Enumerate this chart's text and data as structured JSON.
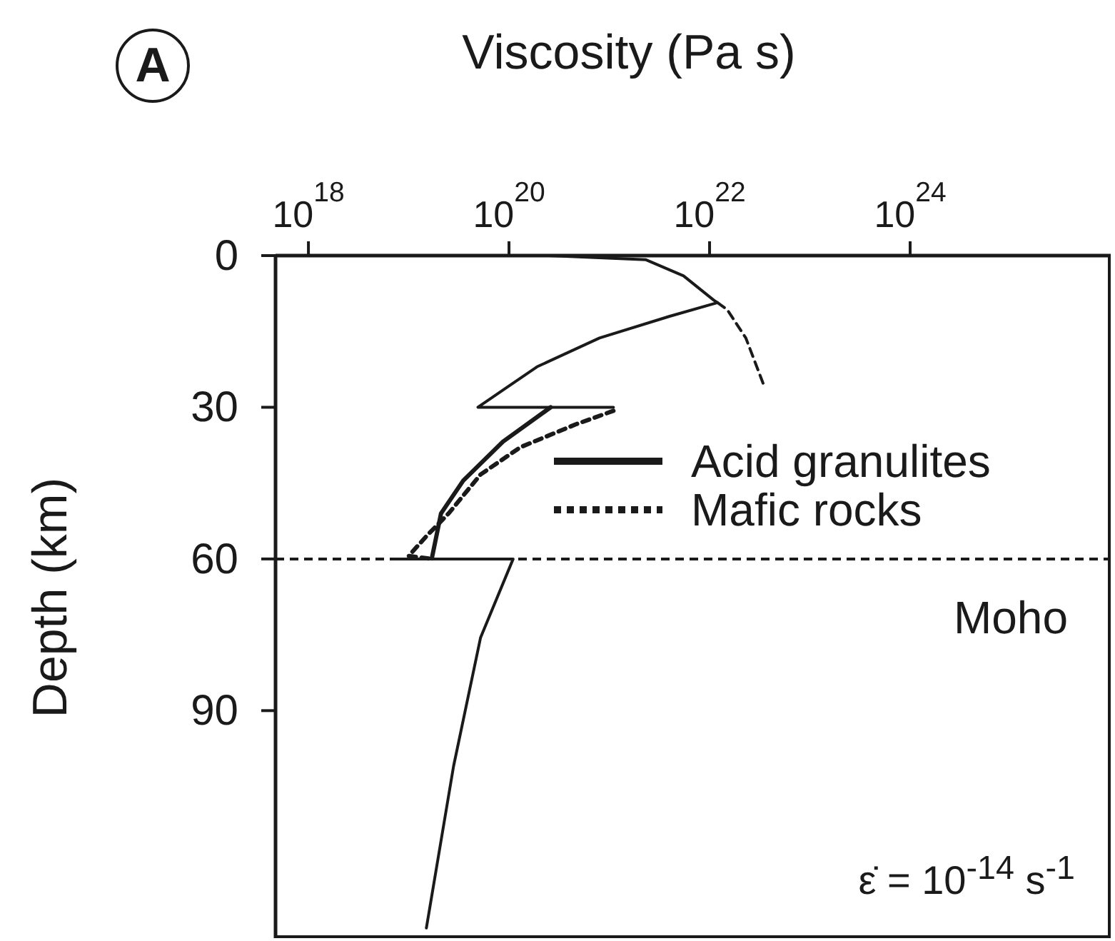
{
  "chart_data": {
    "type": "line",
    "xlabel": "Viscosity (Pa s)",
    "ylabel": "Depth (km)",
    "log": "x",
    "xlim": [
      4.7e+17,
      1e+26
    ],
    "xticks": [
      {
        "value": 1e+18,
        "label": "10$^{18}$"
      },
      {
        "value": 1e+20,
        "label": "10$^{20}$"
      },
      {
        "value": 1e+22,
        "label": "10$^{22}$"
      },
      {
        "value": 1e+24,
        "label": "10$^{24}$"
      }
    ],
    "ylim": [
      135,
      0
    ],
    "yticks": [
      0,
      30,
      60,
      90
    ],
    "grid": false,
    "legend": "right",
    "marker": "none",
    "series": [
      {
        "color": "#1a1a1a",
        "line_style": "solid",
        "x": [
          2.5e+20,
          2.3e+21,
          5.5e+21,
          1.1e+22,
          1.2e+22,
          4e+21,
          8e+20,
          1.9e+20,
          8.7e+19,
          4.9e+19,
          1.1e+21
        ],
        "values": [
          0,
          0.8,
          4,
          8.8,
          9.3,
          12,
          16.3,
          22,
          26.6,
          30,
          30
        ]
      },
      {
        "color": "#1a1a1a",
        "line_style": "dashed",
        "x": [
          1.2e+22,
          1.5e+22,
          2.3e+22,
          3.5e+22
        ],
        "values": [
          9.3,
          10.7,
          16.3,
          25.8
        ]
      },
      {
        "name": "Acid granulites",
        "color": "#1a1a1a",
        "line_style": "solid",
        "x": [
          2.6e+20,
          8.7e+19,
          3.5e+19,
          2.1e+19,
          1.7e+19
        ],
        "values": [
          30,
          36.8,
          44.5,
          51,
          59.9
        ]
      },
      {
        "name": "Mafic rocks",
        "color": "#1a1a1a",
        "line_style": "dotted",
        "x": [
          1.1e+21,
          4.6e+20,
          1.3e+20,
          5.2e+19,
          2.5e+19,
          1.5e+19,
          1e+19,
          1.7e+19
        ],
        "values": [
          30.7,
          33.4,
          37.9,
          43.3,
          51,
          55.5,
          59.4,
          60
        ]
      },
      {
        "color": "#1a1a1a",
        "line_style": "solid",
        "x": [
          6.9e+18,
          1.1e+20,
          5.2e+19,
          2.8e+19,
          1.5e+19
        ],
        "values": [
          60,
          60,
          75.6,
          101,
          133
        ]
      }
    ],
    "ref_lines": [
      {
        "axis": "y",
        "value": 60,
        "label": "Moho",
        "color": "#1a1a1a",
        "line_style": "dashed"
      }
    ],
    "annotations": [
      "A",
      "ε̇ = 10$^{-14}$ s$^{-1}$"
    ]
  }
}
